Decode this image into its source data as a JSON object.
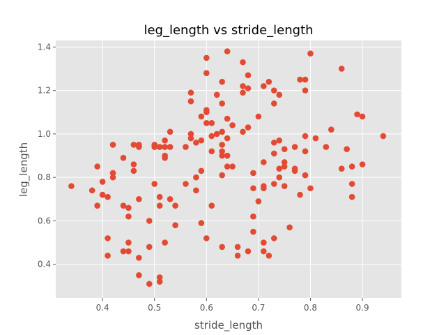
{
  "chart_data": {
    "type": "scatter",
    "title": "leg_length vs stride_length",
    "xlabel": "stride_length",
    "ylabel": "leg_length",
    "xlim": [
      0.31,
      0.975
    ],
    "ylim": [
      0.245,
      1.43
    ],
    "xticks": [
      "0.4",
      "0.5",
      "0.6",
      "0.7",
      "0.8",
      "0.9"
    ],
    "yticks": [
      "0.4",
      "0.6",
      "0.8",
      "1.0",
      "1.2",
      "1.4"
    ],
    "grid": true,
    "background": "#e5e5e5",
    "marker_color": "#e24a33",
    "points": [
      [
        0.34,
        0.76
      ],
      [
        0.38,
        0.74
      ],
      [
        0.39,
        0.85
      ],
      [
        0.39,
        0.67
      ],
      [
        0.4,
        0.78
      ],
      [
        0.4,
        0.72
      ],
      [
        0.41,
        0.71
      ],
      [
        0.41,
        0.52
      ],
      [
        0.41,
        0.44
      ],
      [
        0.42,
        0.95
      ],
      [
        0.42,
        0.82
      ],
      [
        0.42,
        0.8
      ],
      [
        0.44,
        0.89
      ],
      [
        0.44,
        0.67
      ],
      [
        0.44,
        0.46
      ],
      [
        0.45,
        0.66
      ],
      [
        0.45,
        0.62
      ],
      [
        0.45,
        0.5
      ],
      [
        0.45,
        0.46
      ],
      [
        0.46,
        0.95
      ],
      [
        0.46,
        0.86
      ],
      [
        0.46,
        0.83
      ],
      [
        0.47,
        0.95
      ],
      [
        0.47,
        0.94
      ],
      [
        0.47,
        0.7
      ],
      [
        0.47,
        0.43
      ],
      [
        0.47,
        0.35
      ],
      [
        0.49,
        0.6
      ],
      [
        0.49,
        0.48
      ],
      [
        0.49,
        0.31
      ],
      [
        0.5,
        0.95
      ],
      [
        0.5,
        0.94
      ],
      [
        0.5,
        0.77
      ],
      [
        0.51,
        0.94
      ],
      [
        0.51,
        0.71
      ],
      [
        0.51,
        0.67
      ],
      [
        0.51,
        0.34
      ],
      [
        0.51,
        0.32
      ],
      [
        0.52,
        0.97
      ],
      [
        0.52,
        0.94
      ],
      [
        0.52,
        0.9
      ],
      [
        0.52,
        0.89
      ],
      [
        0.52,
        0.5
      ],
      [
        0.53,
        1.01
      ],
      [
        0.53,
        0.94
      ],
      [
        0.53,
        0.7
      ],
      [
        0.54,
        0.67
      ],
      [
        0.54,
        0.58
      ],
      [
        0.56,
        0.94
      ],
      [
        0.56,
        0.77
      ],
      [
        0.57,
        1.19
      ],
      [
        0.57,
        1.15
      ],
      [
        0.57,
        1.0
      ],
      [
        0.57,
        0.98
      ],
      [
        0.58,
        0.96
      ],
      [
        0.58,
        0.8
      ],
      [
        0.58,
        0.74
      ],
      [
        0.59,
        1.08
      ],
      [
        0.59,
        0.97
      ],
      [
        0.59,
        0.83
      ],
      [
        0.59,
        0.59
      ],
      [
        0.6,
        1.35
      ],
      [
        0.6,
        1.28
      ],
      [
        0.6,
        1.11
      ],
      [
        0.6,
        1.1
      ],
      [
        0.6,
        1.05
      ],
      [
        0.6,
        0.52
      ],
      [
        0.61,
        1.05
      ],
      [
        0.61,
        0.99
      ],
      [
        0.61,
        0.92
      ],
      [
        0.61,
        0.67
      ],
      [
        0.62,
        1.18
      ],
      [
        0.62,
        1.0
      ],
      [
        0.63,
        1.24
      ],
      [
        0.63,
        1.14
      ],
      [
        0.63,
        1.01
      ],
      [
        0.63,
        0.95
      ],
      [
        0.63,
        0.92
      ],
      [
        0.63,
        0.9
      ],
      [
        0.63,
        0.81
      ],
      [
        0.63,
        0.48
      ],
      [
        0.64,
        1.38
      ],
      [
        0.64,
        1.07
      ],
      [
        0.64,
        0.98
      ],
      [
        0.64,
        0.9
      ],
      [
        0.64,
        0.85
      ],
      [
        0.65,
        1.04
      ],
      [
        0.65,
        0.85
      ],
      [
        0.66,
        0.48
      ],
      [
        0.66,
        0.44
      ],
      [
        0.67,
        1.33
      ],
      [
        0.67,
        1.22
      ],
      [
        0.67,
        1.19
      ],
      [
        0.67,
        1.01
      ],
      [
        0.68,
        1.27
      ],
      [
        0.68,
        1.21
      ],
      [
        0.68,
        1.03
      ],
      [
        0.68,
        0.46
      ],
      [
        0.69,
        0.82
      ],
      [
        0.69,
        0.75
      ],
      [
        0.69,
        0.62
      ],
      [
        0.69,
        0.55
      ],
      [
        0.7,
        1.08
      ],
      [
        0.7,
        0.69
      ],
      [
        0.71,
        1.22
      ],
      [
        0.71,
        0.87
      ],
      [
        0.71,
        0.76
      ],
      [
        0.71,
        0.75
      ],
      [
        0.71,
        0.5
      ],
      [
        0.71,
        0.46
      ],
      [
        0.72,
        1.24
      ],
      [
        0.72,
        0.44
      ],
      [
        0.73,
        1.2
      ],
      [
        0.73,
        1.14
      ],
      [
        0.73,
        0.96
      ],
      [
        0.73,
        0.91
      ],
      [
        0.73,
        0.77
      ],
      [
        0.73,
        0.52
      ],
      [
        0.74,
        1.18
      ],
      [
        0.74,
        0.97
      ],
      [
        0.74,
        0.84
      ],
      [
        0.74,
        0.8
      ],
      [
        0.75,
        0.93
      ],
      [
        0.75,
        0.87
      ],
      [
        0.75,
        0.85
      ],
      [
        0.75,
        0.76
      ],
      [
        0.76,
        0.57
      ],
      [
        0.77,
        0.94
      ],
      [
        0.77,
        0.84
      ],
      [
        0.77,
        0.83
      ],
      [
        0.78,
        1.25
      ],
      [
        0.78,
        0.72
      ],
      [
        0.79,
        1.25
      ],
      [
        0.79,
        1.2
      ],
      [
        0.79,
        0.99
      ],
      [
        0.79,
        0.92
      ],
      [
        0.79,
        0.81
      ],
      [
        0.8,
        1.37
      ],
      [
        0.8,
        0.75
      ],
      [
        0.81,
        0.98
      ],
      [
        0.83,
        0.94
      ],
      [
        0.84,
        1.02
      ],
      [
        0.86,
        1.3
      ],
      [
        0.86,
        0.84
      ],
      [
        0.87,
        0.93
      ],
      [
        0.88,
        0.85
      ],
      [
        0.88,
        0.77
      ],
      [
        0.88,
        0.71
      ],
      [
        0.89,
        1.09
      ],
      [
        0.9,
        1.08
      ],
      [
        0.9,
        0.86
      ],
      [
        0.94,
        0.99
      ]
    ]
  }
}
